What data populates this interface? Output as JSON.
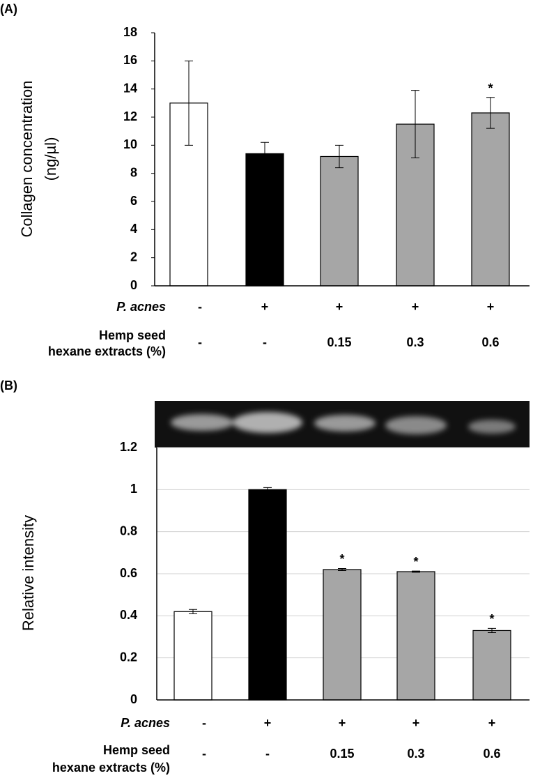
{
  "chart_data": [
    {
      "type": "bar",
      "panel_label": "(A)",
      "y_label": [
        "Collagen concentration",
        "(ng/µl)"
      ],
      "values": [
        13.0,
        9.4,
        9.2,
        11.5,
        12.3
      ],
      "errors": [
        3.0,
        0.8,
        0.8,
        2.4,
        1.1
      ],
      "colors": [
        "#ffffff",
        "#000000",
        "#a6a6a6",
        "#a6a6a6",
        "#a6a6a6"
      ],
      "significance": [
        null,
        null,
        null,
        null,
        "*"
      ],
      "ylim": [
        0,
        18
      ],
      "yticks": [
        0,
        2,
        4,
        6,
        8,
        10,
        12,
        14,
        16,
        18
      ],
      "grid": false,
      "rows": [
        {
          "label": [
            "P. acnes"
          ],
          "cells": [
            "-",
            "+",
            "+",
            "+",
            "+"
          ]
        },
        {
          "label": [
            "Hemp seed",
            "hexane extracts (%)"
          ],
          "cells": [
            "-",
            "-",
            "0.15",
            "0.3",
            "0.6"
          ]
        }
      ]
    },
    {
      "type": "bar",
      "panel_label": "(B)",
      "y_label": [
        "Relative intensity"
      ],
      "values": [
        0.42,
        1.0,
        0.62,
        0.61,
        0.33
      ],
      "errors": [
        0.01,
        0.01,
        0.005,
        0.003,
        0.01
      ],
      "colors": [
        "#ffffff",
        "#000000",
        "#a6a6a6",
        "#a6a6a6",
        "#a6a6a6"
      ],
      "significance": [
        null,
        null,
        "*",
        "*",
        "*"
      ],
      "ylim": [
        0,
        1.2
      ],
      "yticks": [
        0,
        0.2,
        0.4,
        0.6,
        0.8,
        1,
        1.2
      ],
      "grid": true,
      "rows": [
        {
          "label": [
            "P. acnes"
          ],
          "cells": [
            "-",
            "+",
            "+",
            "+",
            "+"
          ]
        },
        {
          "label": [
            "Hemp seed",
            "hexane extracts (%)"
          ],
          "cells": [
            "-",
            "-",
            "0.15",
            "0.3",
            "0.6"
          ]
        }
      ]
    }
  ]
}
